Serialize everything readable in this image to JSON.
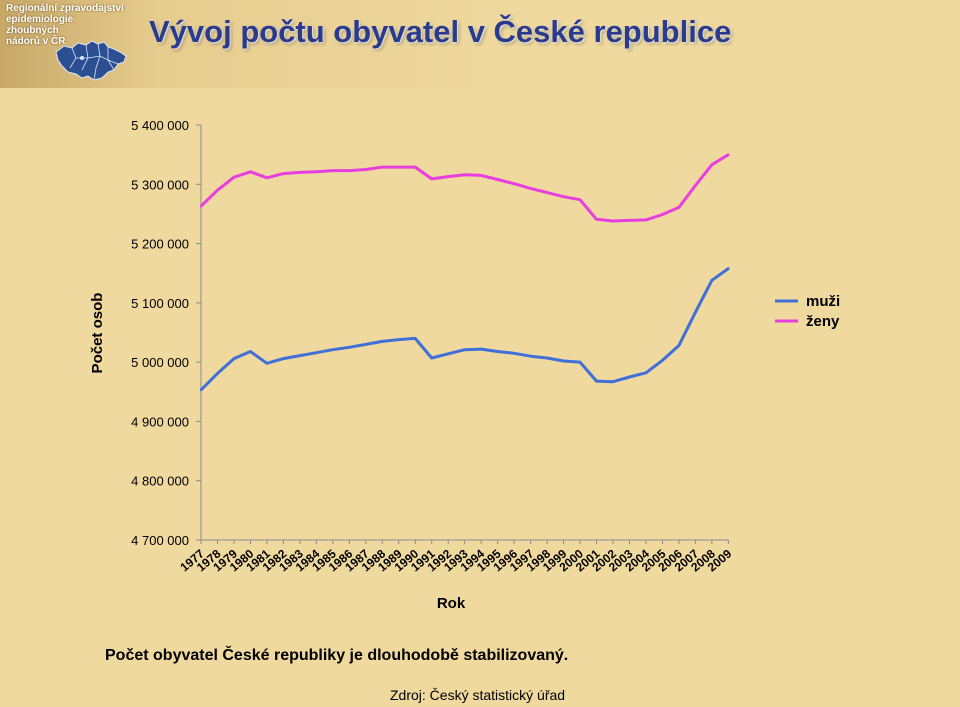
{
  "header": {
    "logo_lines": [
      "Regionální zpravodajství",
      "epidemiologie",
      "zhoubných",
      "nádorů v ČR"
    ],
    "title": "Vývoj počtu obyvatel v České republice"
  },
  "chart_data": {
    "type": "line",
    "title": "",
    "xlabel": "Rok",
    "ylabel": "Počet osob",
    "ylim": [
      4700000,
      5400000
    ],
    "yticks": [
      4700000,
      4800000,
      4900000,
      5000000,
      5100000,
      5200000,
      5300000,
      5400000
    ],
    "ytick_labels": [
      "4 700 000",
      "4 800 000",
      "4 900 000",
      "5 000 000",
      "5 100 000",
      "5 200 000",
      "5 300 000",
      "5 400 000"
    ],
    "x": [
      "1977",
      "1978",
      "1979",
      "1980",
      "1981",
      "1982",
      "1983",
      "1984",
      "1985",
      "1986",
      "1987",
      "1988",
      "1989",
      "1990",
      "1991",
      "1992",
      "1993",
      "1994",
      "1995",
      "1996",
      "1997",
      "1998",
      "1999",
      "2000",
      "2001",
      "2002",
      "2003",
      "2004",
      "2005",
      "2006",
      "2007",
      "2008",
      "2009"
    ],
    "grid": false,
    "legend_position": "right",
    "series": [
      {
        "name": "muži",
        "color": "#3f6fd8",
        "values": [
          4953000,
          4981000,
          5006000,
          5018000,
          4998000,
          5006000,
          5011000,
          5016000,
          5021000,
          5025000,
          5030000,
          5035000,
          5038000,
          5040000,
          5007000,
          5014000,
          5021000,
          5022000,
          5018000,
          5015000,
          5010000,
          5007000,
          5002000,
          5000000,
          4968000,
          4967000,
          4975000,
          4982000,
          5003000,
          5028000,
          5084000,
          5138000,
          5158000
        ]
      },
      {
        "name": "ženy",
        "color": "#e83ee0",
        "values": [
          5263000,
          5290000,
          5312000,
          5321000,
          5311000,
          5318000,
          5320000,
          5321000,
          5323000,
          5323000,
          5325000,
          5329000,
          5329000,
          5329000,
          5309000,
          5313000,
          5316000,
          5315000,
          5308000,
          5301000,
          5293000,
          5286000,
          5279000,
          5274000,
          5241000,
          5238000,
          5239000,
          5240000,
          5249000,
          5261000,
          5298000,
          5333000,
          5350000
        ]
      }
    ]
  },
  "caption": "Počet obyvatel České republiky je dlouhodobě stabilizovaný.",
  "source": "Zdroj: Český statistický úřad",
  "colors": {
    "background": "#efd99e",
    "title": "#2a3a8c",
    "map_fill": "#2c4e93"
  },
  "icons": {
    "logo": "czech-republic-map-icon"
  }
}
